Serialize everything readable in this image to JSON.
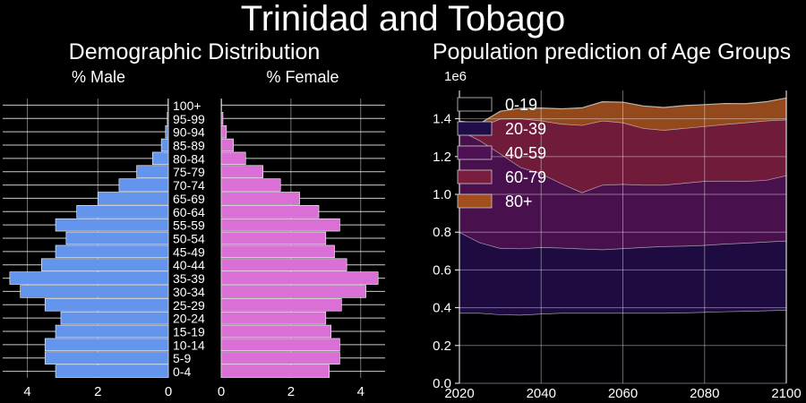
{
  "title": "Trinidad and Tobago",
  "colors": {
    "background": "#000000",
    "male": "#6495ED",
    "female": "#DA70D6",
    "grid": "#ffffff",
    "areas": [
      "#000004",
      "#1f0c48",
      "#4e1154",
      "#7a1d3f",
      "#a04f1d"
    ]
  },
  "chart_data": [
    {
      "type": "bar",
      "orientation": "horizontal",
      "title": "Demographic Distribution",
      "male_label": "% Male",
      "female_label": "% Female",
      "categories": [
        "0-4",
        "5-9",
        "10-14",
        "15-19",
        "20-24",
        "25-29",
        "30-34",
        "35-39",
        "40-44",
        "45-49",
        "50-54",
        "55-59",
        "60-64",
        "65-69",
        "70-74",
        "75-79",
        "80-84",
        "85-89",
        "90-94",
        "95-99",
        "100+"
      ],
      "series": [
        {
          "name": "% Male",
          "values": [
            3.2,
            3.5,
            3.5,
            3.2,
            3.05,
            3.5,
            4.2,
            4.5,
            3.6,
            3.2,
            2.9,
            3.2,
            2.6,
            2.0,
            1.4,
            0.9,
            0.45,
            0.2,
            0.08,
            0.03,
            0.01
          ]
        },
        {
          "name": "% Female",
          "values": [
            3.1,
            3.4,
            3.4,
            3.15,
            3.0,
            3.45,
            4.15,
            4.5,
            3.6,
            3.25,
            3.0,
            3.4,
            2.8,
            2.25,
            1.7,
            1.2,
            0.7,
            0.35,
            0.15,
            0.05,
            0.01
          ]
        }
      ],
      "xlim_male": [
        4.7,
        0
      ],
      "xlim_female": [
        0,
        4.7
      ],
      "male_ticks": [
        "4",
        "2",
        "0"
      ],
      "female_ticks": [
        "0",
        "2",
        "4"
      ],
      "grid": true
    },
    {
      "type": "area",
      "stacked": true,
      "title": "Population prediction of Age Groups",
      "y_multiplier_label": "1e6",
      "x": [
        2020,
        2025,
        2030,
        2035,
        2040,
        2045,
        2050,
        2055,
        2060,
        2065,
        2070,
        2075,
        2080,
        2085,
        2090,
        2095,
        2100
      ],
      "xlim": [
        2020,
        2100
      ],
      "ylim": [
        0,
        1.55
      ],
      "x_ticks": [
        "2020",
        "2040",
        "2060",
        "2080",
        "2100"
      ],
      "y_ticks": [
        "0.0",
        "0.2",
        "0.4",
        "0.6",
        "0.8",
        "1.0",
        "1.2",
        "1.4"
      ],
      "legend_position": "top-left",
      "grid": true,
      "series": [
        {
          "name": "0-19",
          "values": [
            0.372,
            0.372,
            0.364,
            0.362,
            0.368,
            0.372,
            0.372,
            0.372,
            0.372,
            0.372,
            0.372,
            0.374,
            0.377,
            0.38,
            0.382,
            0.385,
            0.388
          ]
        },
        {
          "name": "20-39",
          "values": [
            0.428,
            0.373,
            0.351,
            0.351,
            0.352,
            0.345,
            0.34,
            0.336,
            0.342,
            0.348,
            0.353,
            0.353,
            0.354,
            0.358,
            0.361,
            0.364,
            0.366
          ]
        },
        {
          "name": "40-59",
          "values": [
            0.54,
            0.54,
            0.5,
            0.43,
            0.39,
            0.34,
            0.298,
            0.342,
            0.34,
            0.33,
            0.325,
            0.333,
            0.339,
            0.333,
            0.327,
            0.326,
            0.346
          ]
        },
        {
          "name": "60-79",
          "values": [
            0.04,
            0.07,
            0.185,
            0.258,
            0.28,
            0.316,
            0.356,
            0.34,
            0.326,
            0.3,
            0.29,
            0.29,
            0.29,
            0.3,
            0.31,
            0.315,
            0.295
          ]
        },
        {
          "name": "80+",
          "values": [
            0.008,
            0.02,
            0.04,
            0.055,
            0.067,
            0.08,
            0.092,
            0.1,
            0.108,
            0.118,
            0.12,
            0.12,
            0.115,
            0.11,
            0.1,
            0.1,
            0.115
          ]
        }
      ]
    }
  ]
}
